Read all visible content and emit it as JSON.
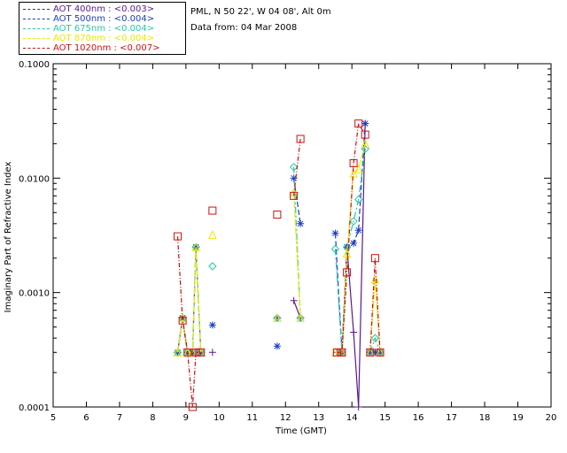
{
  "header": {
    "station": "PML, N 50 22', W 04 08', Alt 0m",
    "date": "Data from: 04 Mar 2008"
  },
  "legend": [
    {
      "label": "AOT  400nm : <0.003>",
      "color": "#5a1a8a"
    },
    {
      "label": "AOT  500nm : <0.004>",
      "color": "#1a3cc8"
    },
    {
      "label": "AOT  675nm : <0.004>",
      "color": "#22c8a8"
    },
    {
      "label": "AOT  870nm : <0.004>",
      "color": "#e8e800"
    },
    {
      "label": "AOT 1020nm : <0.007>",
      "color": "#d01010"
    }
  ],
  "chart_data": {
    "type": "line",
    "log_y": true,
    "xlabel": "Time (GMT)",
    "ylabel": "Imaginary Part of Refractive Index",
    "xlim": [
      5,
      20
    ],
    "ylim": [
      0.0001,
      0.1
    ],
    "xticks": [
      "5",
      "6",
      "7",
      "8",
      "9",
      "10",
      "11",
      "12",
      "13",
      "14",
      "15",
      "16",
      "17",
      "18",
      "19",
      "20"
    ],
    "yticks": [
      "0.0001",
      "0.0010",
      "0.0100",
      "0.1000"
    ],
    "series": [
      {
        "name": "AOT  400nm",
        "color": "#5a1a8a",
        "marker": "plus",
        "segments": [
          [
            [
              8.75,
              0.0003
            ],
            [
              8.9,
              0.0006
            ],
            [
              9.05,
              0.0003
            ],
            [
              9.2,
              0.0003
            ],
            [
              9.3,
              0.0003
            ],
            [
              9.45,
              0.0003
            ]
          ],
          [
            [
              9.8,
              0.0003
            ]
          ],
          [
            [
              11.75,
              0.0006
            ]
          ],
          [
            [
              12.25,
              0.00085
            ],
            [
              12.45,
              0.0006
            ]
          ],
          [
            [
              13.55,
              0.0003
            ],
            [
              13.7,
              0.0003
            ],
            [
              13.85,
              0.0025
            ],
            [
              14.05,
              0.00045
            ],
            [
              14.2,
              0.0001
            ],
            [
              14.4,
              0.03
            ]
          ],
          [
            [
              14.55,
              0.0003
            ],
            [
              14.7,
              0.0003
            ],
            [
              14.85,
              0.0003
            ]
          ]
        ]
      },
      {
        "name": "AOT  500nm",
        "color": "#1a3cc8",
        "marker": "star",
        "segments": [
          [
            [
              8.75,
              0.0003
            ],
            [
              8.9,
              0.0006
            ],
            [
              9.05,
              0.0003
            ],
            [
              9.2,
              0.0003
            ],
            [
              9.3,
              0.0025
            ],
            [
              9.45,
              0.0003
            ]
          ],
          [
            [
              9.8,
              0.00052
            ]
          ],
          [
            [
              11.75,
              0.00034
            ]
          ],
          [
            [
              12.25,
              0.01
            ],
            [
              12.45,
              0.004
            ]
          ],
          [
            [
              13.5,
              0.0033
            ],
            [
              13.7,
              0.0003
            ],
            [
              13.85,
              0.0025
            ],
            [
              14.05,
              0.0027
            ],
            [
              14.2,
              0.0035
            ],
            [
              14.4,
              0.03
            ]
          ],
          [
            [
              14.55,
              0.0003
            ],
            [
              14.7,
              0.0003
            ],
            [
              14.85,
              0.0003
            ]
          ]
        ]
      },
      {
        "name": "AOT  675nm",
        "color": "#22c8a8",
        "marker": "diamond",
        "segments": [
          [
            [
              8.75,
              0.0003
            ],
            [
              8.9,
              0.0006
            ],
            [
              9.05,
              0.0003
            ],
            [
              9.2,
              0.0003
            ],
            [
              9.3,
              0.0025
            ],
            [
              9.45,
              0.0003
            ]
          ],
          [
            [
              9.8,
              0.0017
            ]
          ],
          [
            [
              11.75,
              0.0006
            ]
          ],
          [
            [
              12.25,
              0.0125
            ],
            [
              12.45,
              0.0006
            ]
          ],
          [
            [
              13.5,
              0.0024
            ],
            [
              13.7,
              0.0003
            ],
            [
              13.85,
              0.0025
            ],
            [
              14.05,
              0.0042
            ],
            [
              14.2,
              0.0065
            ],
            [
              14.4,
              0.018
            ]
          ],
          [
            [
              14.55,
              0.0003
            ],
            [
              14.7,
              0.0004
            ],
            [
              14.85,
              0.0003
            ]
          ]
        ]
      },
      {
        "name": "AOT  870nm",
        "color": "#e8e800",
        "marker": "triangle",
        "segments": [
          [
            [
              8.75,
              0.0003
            ],
            [
              8.9,
              0.0006
            ],
            [
              9.05,
              0.0003
            ],
            [
              9.2,
              0.0003
            ],
            [
              9.3,
              0.0025
            ],
            [
              9.45,
              0.0003
            ]
          ],
          [
            [
              9.8,
              0.0032
            ]
          ],
          [
            [
              11.75,
              0.0006
            ]
          ],
          [
            [
              12.25,
              0.0075
            ],
            [
              12.45,
              0.0006
            ]
          ],
          [
            [
              13.5,
              0.0003
            ],
            [
              13.7,
              0.0003
            ],
            [
              13.85,
              0.0022
            ],
            [
              14.05,
              0.011
            ],
            [
              14.2,
              0.012
            ],
            [
              14.4,
              0.02
            ]
          ],
          [
            [
              14.55,
              0.0003
            ],
            [
              14.7,
              0.0013
            ],
            [
              14.85,
              0.0003
            ]
          ]
        ]
      },
      {
        "name": "AOT 1020nm",
        "color": "#d01010",
        "marker": "square",
        "segments": [
          [
            [
              8.75,
              0.0031
            ],
            [
              8.9,
              0.00057
            ],
            [
              9.05,
              0.0003
            ],
            [
              9.2,
              0.0001
            ],
            [
              9.3,
              0.0003
            ],
            [
              9.45,
              0.0003
            ]
          ],
          [
            [
              9.8,
              0.0052
            ]
          ],
          [
            [
              11.75,
              0.0048
            ]
          ],
          [
            [
              12.25,
              0.007
            ],
            [
              12.45,
              0.022
            ]
          ],
          [
            [
              13.55,
              0.0003
            ],
            [
              13.7,
              0.0003
            ],
            [
              13.85,
              0.0015
            ],
            [
              14.05,
              0.0135
            ],
            [
              14.2,
              0.03
            ],
            [
              14.4,
              0.024
            ]
          ],
          [
            [
              14.55,
              0.0003
            ],
            [
              14.7,
              0.002
            ],
            [
              14.85,
              0.0003
            ]
          ]
        ]
      }
    ]
  }
}
